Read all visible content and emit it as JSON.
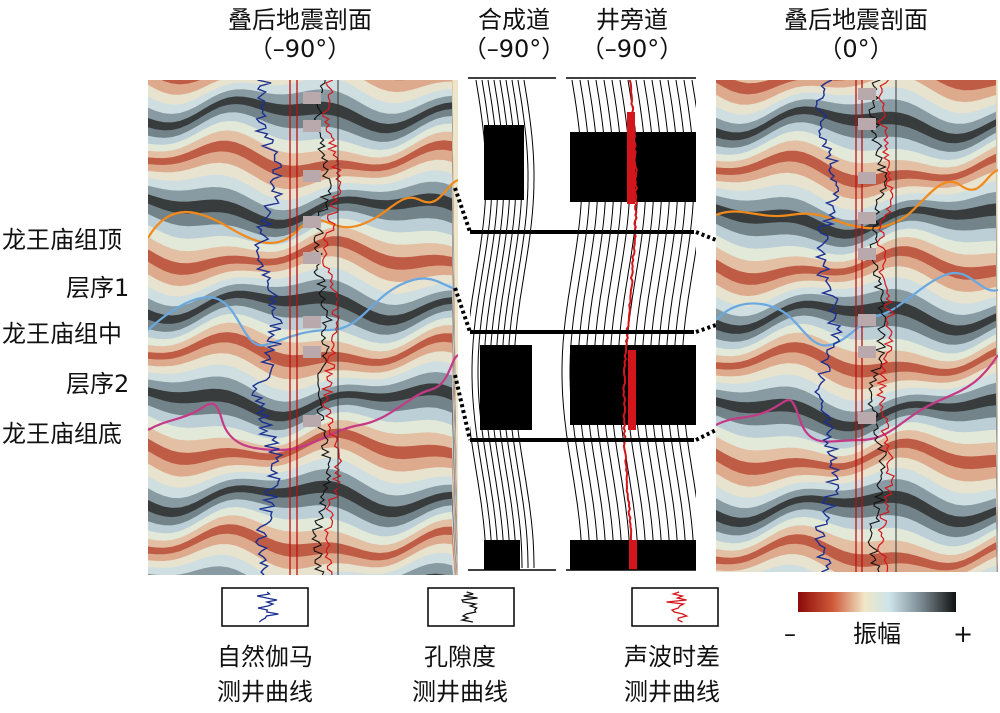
{
  "panels": {
    "left": {
      "title": "叠后地震剖面",
      "phase": "（–90°）"
    },
    "synthetic": {
      "title": "合成道",
      "phase": "（–90°）"
    },
    "wellside": {
      "title": "井旁道",
      "phase": "（–90°）"
    },
    "right": {
      "title": "叠后地震剖面",
      "phase": "（0°）"
    }
  },
  "horizons": [
    {
      "label": "龙王庙组顶",
      "color": "#111111"
    },
    {
      "label": "层序1",
      "color": "#c0161b"
    },
    {
      "label": "龙王庙组中",
      "color": "#111111"
    },
    {
      "label": "层序2",
      "color": "#c0161b"
    },
    {
      "label": "龙王庙组底",
      "color": "#111111"
    }
  ],
  "legend": {
    "gamma": {
      "line1": "自然伽马",
      "line2": "测井曲线",
      "color": "#1a2f8f"
    },
    "porosity": {
      "line1": "孔隙度",
      "line2": "测井曲线",
      "color": "#111111"
    },
    "sonic": {
      "line1": "声波时差",
      "line2": "测井曲线",
      "color": "#d3161b"
    },
    "amplitude": {
      "minus": "–",
      "label": "振幅",
      "plus": "+"
    }
  },
  "colors": {
    "horizon_top": "#f08a1c",
    "horizon_mid": "#6aa8e0",
    "horizon_bottom": "#c43a86",
    "amp_neg": "#a01a1a",
    "amp_mid": "#eee8c8",
    "amp_pos": "#151515"
  }
}
